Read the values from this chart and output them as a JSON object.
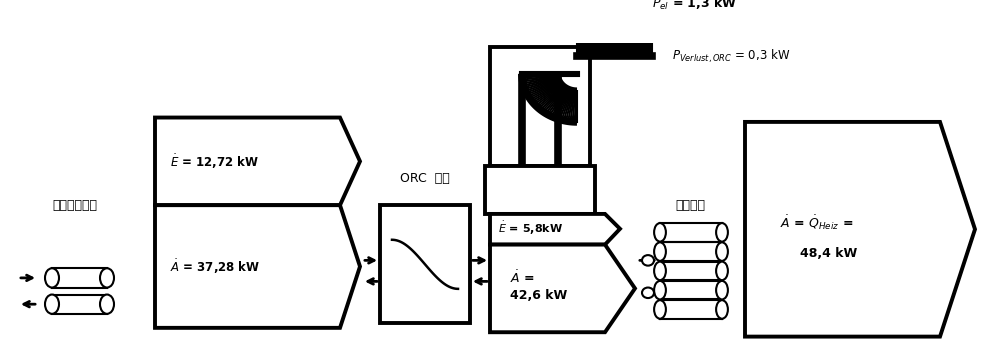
{
  "bg_color": "#ffffff",
  "fig_width": 10.0,
  "fig_height": 3.48,
  "dpi": 100,
  "label_yuan": "远距离供热网",
  "label_orc": "ORC  设备",
  "label_gong": "供暖装置",
  "text_E1": "$\\dot{E}$ = 12,72 kW",
  "text_A1": "$\\dot{A}$ = 37,28 kW",
  "text_E2": "$\\dot{E}$ = 5,8kW",
  "text_A2_1": "$\\dot{A}$ =",
  "text_A2_2": "42,6 kW",
  "text_Pel": "$P_{el}$ = 1,3 kW",
  "text_Pv": "$P_{Verlust,ORC}$ = 0,3 kW",
  "text_A3_1": "$\\dot{A}$ = $\\dot{Q}_{Heiz}$ =",
  "text_A3_2": "48,4 kW",
  "lw": 2.8,
  "lc": "#000000"
}
